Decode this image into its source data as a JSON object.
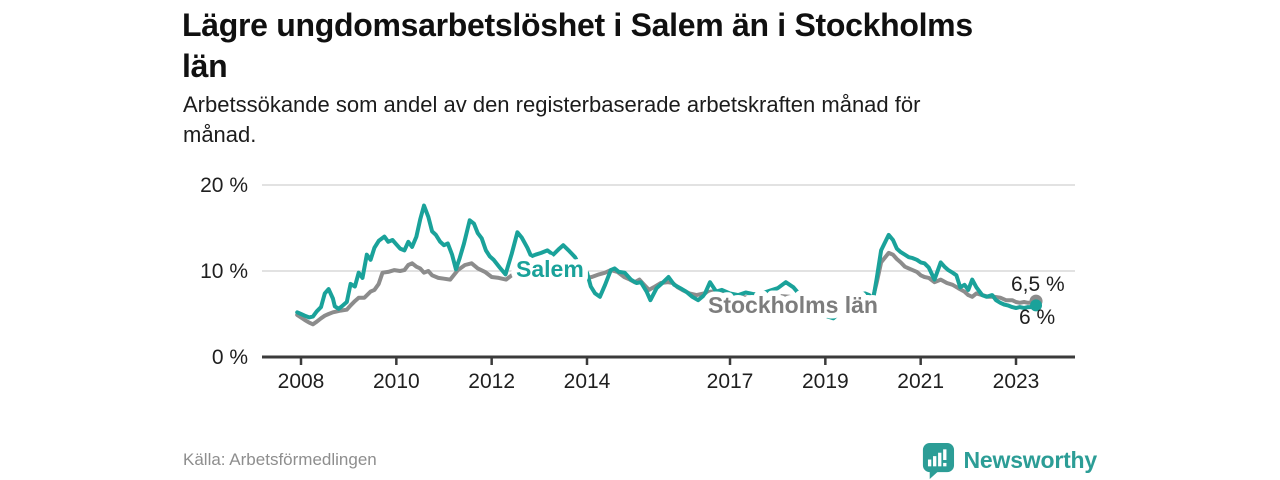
{
  "header": {
    "title": "Lägre ungdomsarbetslöshet i Salem än i Stockholms län",
    "title_line1": "Lägre ungdomsarbetslöshet i Salem än i Stockholms",
    "title_line2": "län",
    "subtitle_line1": "Arbetssökande som andel av den registerbaserade arbetskraften månad för",
    "subtitle_line2": "månad."
  },
  "footer": {
    "source": "Källa: Arbetsförmedlingen",
    "brand": "Newsworthy"
  },
  "colors": {
    "salem_teal": "#1aa29a",
    "stockholm_gray": "#8c8c8c",
    "stockholm_label_gray": "#7d7d7d",
    "axis_dark": "#3b3b3b",
    "gridline": "#d9d9d9",
    "brand_teal": "#2c9d96"
  },
  "chart_data": {
    "type": "line",
    "title": "Lägre ungdomsarbetslöshet i Salem än i Stockholms län",
    "subtitle": "Arbetssökande som andel av den registerbaserade arbetskraften månad för månad.",
    "xlabel": "",
    "ylabel": "",
    "grid": "horizontal gridlines at 10 % and 20 %, solid dark baseline at 0 %",
    "legend_position": "inline labels on lines",
    "x_axis": {
      "range": [
        2007.8,
        2023.7
      ],
      "ticks": [
        {
          "v": 2008,
          "label": "2008"
        },
        {
          "v": 2010,
          "label": "2010"
        },
        {
          "v": 2012,
          "label": "2012"
        },
        {
          "v": 2014,
          "label": "2014"
        },
        {
          "v": 2017,
          "label": "2017"
        },
        {
          "v": 2019,
          "label": "2019"
        },
        {
          "v": 2021,
          "label": "2021"
        },
        {
          "v": 2023,
          "label": "2023"
        }
      ]
    },
    "y_axis": {
      "range": [
        0,
        21
      ],
      "unit": "%",
      "ticks": [
        {
          "v": 0,
          "label": "0 %"
        },
        {
          "v": 10,
          "label": "10 %"
        },
        {
          "v": 20,
          "label": "20 %"
        }
      ]
    },
    "series": [
      {
        "name": "Stockholms län",
        "inline_label": "Stockholms län",
        "color": "#8c8c8c",
        "label_color": "#7d7d7d",
        "end_value": 6.5,
        "end_label": "6,5 %",
        "points": [
          [
            2007.92,
            4.9
          ],
          [
            2008.0,
            4.6
          ],
          [
            2008.08,
            4.3
          ],
          [
            2008.17,
            4.0
          ],
          [
            2008.25,
            3.8
          ],
          [
            2008.33,
            4.1
          ],
          [
            2008.42,
            4.5
          ],
          [
            2008.5,
            4.8
          ],
          [
            2008.58,
            5.0
          ],
          [
            2008.67,
            5.2
          ],
          [
            2008.75,
            5.3
          ],
          [
            2008.83,
            5.4
          ],
          [
            2008.96,
            5.5
          ],
          [
            2009.04,
            6.0
          ],
          [
            2009.13,
            6.5
          ],
          [
            2009.21,
            6.9
          ],
          [
            2009.33,
            6.9
          ],
          [
            2009.46,
            7.6
          ],
          [
            2009.54,
            7.8
          ],
          [
            2009.63,
            8.5
          ],
          [
            2009.71,
            9.8
          ],
          [
            2009.83,
            9.9
          ],
          [
            2009.96,
            10.1
          ],
          [
            2010.08,
            10.0
          ],
          [
            2010.17,
            10.1
          ],
          [
            2010.25,
            10.7
          ],
          [
            2010.33,
            10.9
          ],
          [
            2010.42,
            10.5
          ],
          [
            2010.5,
            10.3
          ],
          [
            2010.58,
            9.8
          ],
          [
            2010.67,
            10.0
          ],
          [
            2010.75,
            9.5
          ],
          [
            2010.88,
            9.2
          ],
          [
            2011.0,
            9.1
          ],
          [
            2011.13,
            9.0
          ],
          [
            2011.29,
            10.1
          ],
          [
            2011.44,
            10.7
          ],
          [
            2011.58,
            10.9
          ],
          [
            2011.71,
            10.3
          ],
          [
            2011.86,
            9.9
          ],
          [
            2012.0,
            9.3
          ],
          [
            2012.15,
            9.2
          ],
          [
            2012.3,
            9.0
          ],
          [
            2012.42,
            9.5
          ],
          [
            2012.55,
            9.8
          ],
          [
            2012.7,
            9.6
          ],
          [
            2012.85,
            9.4
          ],
          [
            2013.0,
            9.6
          ],
          [
            2013.15,
            9.9
          ],
          [
            2013.3,
            10.0
          ],
          [
            2013.45,
            10.1
          ],
          [
            2013.6,
            9.9
          ],
          [
            2013.7,
            9.9
          ],
          [
            2013.8,
            9.3
          ],
          [
            2013.9,
            9.0
          ],
          [
            2014.0,
            9.2
          ],
          [
            2014.1,
            9.3
          ],
          [
            2014.25,
            9.6
          ],
          [
            2014.38,
            9.8
          ],
          [
            2014.5,
            10.1
          ],
          [
            2014.64,
            9.9
          ],
          [
            2014.78,
            9.3
          ],
          [
            2014.9,
            9.0
          ],
          [
            2015.0,
            8.7
          ],
          [
            2015.1,
            9.0
          ],
          [
            2015.2,
            8.4
          ],
          [
            2015.3,
            7.8
          ],
          [
            2015.4,
            8.1
          ],
          [
            2015.55,
            8.6
          ],
          [
            2015.7,
            8.7
          ],
          [
            2015.8,
            8.6
          ],
          [
            2015.9,
            8.1
          ],
          [
            2016.0,
            7.8
          ],
          [
            2016.15,
            7.4
          ],
          [
            2016.3,
            7.2
          ],
          [
            2016.45,
            7.4
          ],
          [
            2016.6,
            7.6
          ],
          [
            2016.8,
            7.6
          ],
          [
            2017.0,
            7.3
          ],
          [
            2017.25,
            7.0
          ],
          [
            2017.5,
            6.8
          ],
          [
            2017.75,
            6.9
          ],
          [
            2018.0,
            7.1
          ],
          [
            2018.25,
            7.0
          ],
          [
            2018.5,
            6.7
          ],
          [
            2018.75,
            6.4
          ],
          [
            2019.0,
            6.3
          ],
          [
            2019.25,
            6.2
          ],
          [
            2019.5,
            6.4
          ],
          [
            2019.7,
            6.8
          ],
          [
            2019.9,
            7.0
          ],
          [
            2020.0,
            6.9
          ],
          [
            2020.08,
            8.7
          ],
          [
            2020.17,
            11.0
          ],
          [
            2020.33,
            12.1
          ],
          [
            2020.42,
            11.9
          ],
          [
            2020.5,
            11.4
          ],
          [
            2020.58,
            11.0
          ],
          [
            2020.67,
            10.5
          ],
          [
            2020.75,
            10.3
          ],
          [
            2020.92,
            9.9
          ],
          [
            2021.0,
            9.5
          ],
          [
            2021.08,
            9.3
          ],
          [
            2021.17,
            9.2
          ],
          [
            2021.29,
            8.7
          ],
          [
            2021.42,
            9.0
          ],
          [
            2021.55,
            8.6
          ],
          [
            2021.67,
            8.4
          ],
          [
            2021.79,
            8.0
          ],
          [
            2021.92,
            7.6
          ],
          [
            2022.0,
            7.2
          ],
          [
            2022.08,
            7.0
          ],
          [
            2022.17,
            7.4
          ],
          [
            2022.29,
            7.2
          ],
          [
            2022.42,
            7.0
          ],
          [
            2022.55,
            7.0
          ],
          [
            2022.67,
            6.9
          ],
          [
            2022.79,
            6.6
          ],
          [
            2022.92,
            6.6
          ],
          [
            2023.0,
            6.4
          ],
          [
            2023.08,
            6.3
          ],
          [
            2023.17,
            6.4
          ],
          [
            2023.25,
            6.3
          ],
          [
            2023.33,
            6.3
          ],
          [
            2023.42,
            6.5
          ]
        ]
      },
      {
        "name": "Salem",
        "inline_label": "Salem",
        "color": "#1aa29a",
        "label_color": "#1aa29a",
        "end_value": 6.0,
        "end_label": "6 %",
        "points": [
          [
            2007.92,
            5.2
          ],
          [
            2008.0,
            5.0
          ],
          [
            2008.08,
            4.8
          ],
          [
            2008.17,
            4.6
          ],
          [
            2008.25,
            4.7
          ],
          [
            2008.33,
            5.3
          ],
          [
            2008.42,
            5.8
          ],
          [
            2008.5,
            7.4
          ],
          [
            2008.58,
            7.9
          ],
          [
            2008.67,
            6.8
          ],
          [
            2008.71,
            5.9
          ],
          [
            2008.79,
            5.6
          ],
          [
            2008.88,
            6.0
          ],
          [
            2008.96,
            6.4
          ],
          [
            2009.04,
            8.5
          ],
          [
            2009.13,
            8.2
          ],
          [
            2009.21,
            9.8
          ],
          [
            2009.29,
            9.2
          ],
          [
            2009.38,
            11.9
          ],
          [
            2009.46,
            11.3
          ],
          [
            2009.54,
            12.7
          ],
          [
            2009.63,
            13.5
          ],
          [
            2009.75,
            14.0
          ],
          [
            2009.83,
            13.4
          ],
          [
            2009.92,
            13.6
          ],
          [
            2010.0,
            13.1
          ],
          [
            2010.08,
            12.6
          ],
          [
            2010.17,
            12.4
          ],
          [
            2010.25,
            13.4
          ],
          [
            2010.33,
            12.8
          ],
          [
            2010.42,
            14.0
          ],
          [
            2010.5,
            16.0
          ],
          [
            2010.58,
            17.6
          ],
          [
            2010.67,
            16.3
          ],
          [
            2010.75,
            14.6
          ],
          [
            2010.83,
            14.2
          ],
          [
            2010.92,
            13.4
          ],
          [
            2011.0,
            13.0
          ],
          [
            2011.08,
            13.2
          ],
          [
            2011.17,
            11.9
          ],
          [
            2011.25,
            10.2
          ],
          [
            2011.33,
            11.5
          ],
          [
            2011.42,
            13.2
          ],
          [
            2011.54,
            15.9
          ],
          [
            2011.63,
            15.5
          ],
          [
            2011.71,
            14.4
          ],
          [
            2011.79,
            13.8
          ],
          [
            2011.88,
            12.4
          ],
          [
            2011.96,
            11.7
          ],
          [
            2012.04,
            11.3
          ],
          [
            2012.17,
            10.4
          ],
          [
            2012.29,
            9.6
          ],
          [
            2012.42,
            12.0
          ],
          [
            2012.54,
            14.5
          ],
          [
            2012.63,
            13.9
          ],
          [
            2012.75,
            12.7
          ],
          [
            2012.83,
            11.7
          ],
          [
            2012.92,
            11.9
          ],
          [
            2013.04,
            12.1
          ],
          [
            2013.17,
            12.4
          ],
          [
            2013.29,
            11.9
          ],
          [
            2013.42,
            12.6
          ],
          [
            2013.5,
            13.0
          ],
          [
            2013.63,
            12.3
          ],
          [
            2013.75,
            11.6
          ],
          [
            2013.83,
            10.7
          ],
          [
            2013.92,
            9.2
          ],
          [
            2014.0,
            9.8
          ],
          [
            2014.08,
            8.2
          ],
          [
            2014.17,
            7.4
          ],
          [
            2014.27,
            7.0
          ],
          [
            2014.38,
            8.4
          ],
          [
            2014.5,
            10.1
          ],
          [
            2014.58,
            10.3
          ],
          [
            2014.67,
            9.9
          ],
          [
            2014.79,
            9.8
          ],
          [
            2014.92,
            9.0
          ],
          [
            2015.04,
            8.6
          ],
          [
            2015.13,
            8.7
          ],
          [
            2015.25,
            7.6
          ],
          [
            2015.33,
            6.6
          ],
          [
            2015.46,
            8.0
          ],
          [
            2015.58,
            8.6
          ],
          [
            2015.71,
            9.3
          ],
          [
            2015.83,
            8.4
          ],
          [
            2015.96,
            8.0
          ],
          [
            2016.08,
            7.6
          ],
          [
            2016.21,
            7.0
          ],
          [
            2016.33,
            6.6
          ],
          [
            2016.46,
            7.2
          ],
          [
            2016.58,
            8.7
          ],
          [
            2016.71,
            7.6
          ],
          [
            2016.83,
            7.8
          ],
          [
            2017.0,
            7.4
          ],
          [
            2017.17,
            7.2
          ],
          [
            2017.33,
            7.5
          ],
          [
            2017.5,
            7.3
          ],
          [
            2017.67,
            7.4
          ],
          [
            2017.83,
            7.7
          ],
          [
            2018.0,
            8.0
          ],
          [
            2018.17,
            8.7
          ],
          [
            2018.33,
            8.1
          ],
          [
            2018.5,
            7.0
          ],
          [
            2018.67,
            6.1
          ],
          [
            2018.83,
            5.3
          ],
          [
            2019.0,
            4.8
          ],
          [
            2019.17,
            4.5
          ],
          [
            2019.33,
            5.3
          ],
          [
            2019.5,
            6.4
          ],
          [
            2019.67,
            7.2
          ],
          [
            2019.83,
            7.4
          ],
          [
            2019.92,
            7.2
          ],
          [
            2020.0,
            6.6
          ],
          [
            2020.08,
            9.2
          ],
          [
            2020.17,
            12.4
          ],
          [
            2020.33,
            14.2
          ],
          [
            2020.42,
            13.6
          ],
          [
            2020.5,
            12.6
          ],
          [
            2020.58,
            12.2
          ],
          [
            2020.67,
            11.9
          ],
          [
            2020.75,
            11.6
          ],
          [
            2020.83,
            11.5
          ],
          [
            2020.92,
            11.3
          ],
          [
            2021.0,
            11.0
          ],
          [
            2021.08,
            10.9
          ],
          [
            2021.17,
            10.4
          ],
          [
            2021.29,
            9.0
          ],
          [
            2021.42,
            11.0
          ],
          [
            2021.5,
            10.5
          ],
          [
            2021.58,
            10.1
          ],
          [
            2021.67,
            9.8
          ],
          [
            2021.75,
            9.5
          ],
          [
            2021.83,
            8.1
          ],
          [
            2021.92,
            8.4
          ],
          [
            2022.0,
            7.8
          ],
          [
            2022.08,
            9.0
          ],
          [
            2022.17,
            8.1
          ],
          [
            2022.29,
            7.2
          ],
          [
            2022.38,
            7.0
          ],
          [
            2022.5,
            7.2
          ],
          [
            2022.58,
            6.6
          ],
          [
            2022.67,
            6.3
          ],
          [
            2022.75,
            6.1
          ],
          [
            2022.83,
            6.0
          ],
          [
            2022.92,
            5.8
          ],
          [
            2023.0,
            5.7
          ],
          [
            2023.08,
            5.8
          ],
          [
            2023.17,
            5.7
          ],
          [
            2023.25,
            5.8
          ],
          [
            2023.33,
            5.8
          ],
          [
            2023.42,
            6.0
          ]
        ]
      }
    ]
  }
}
